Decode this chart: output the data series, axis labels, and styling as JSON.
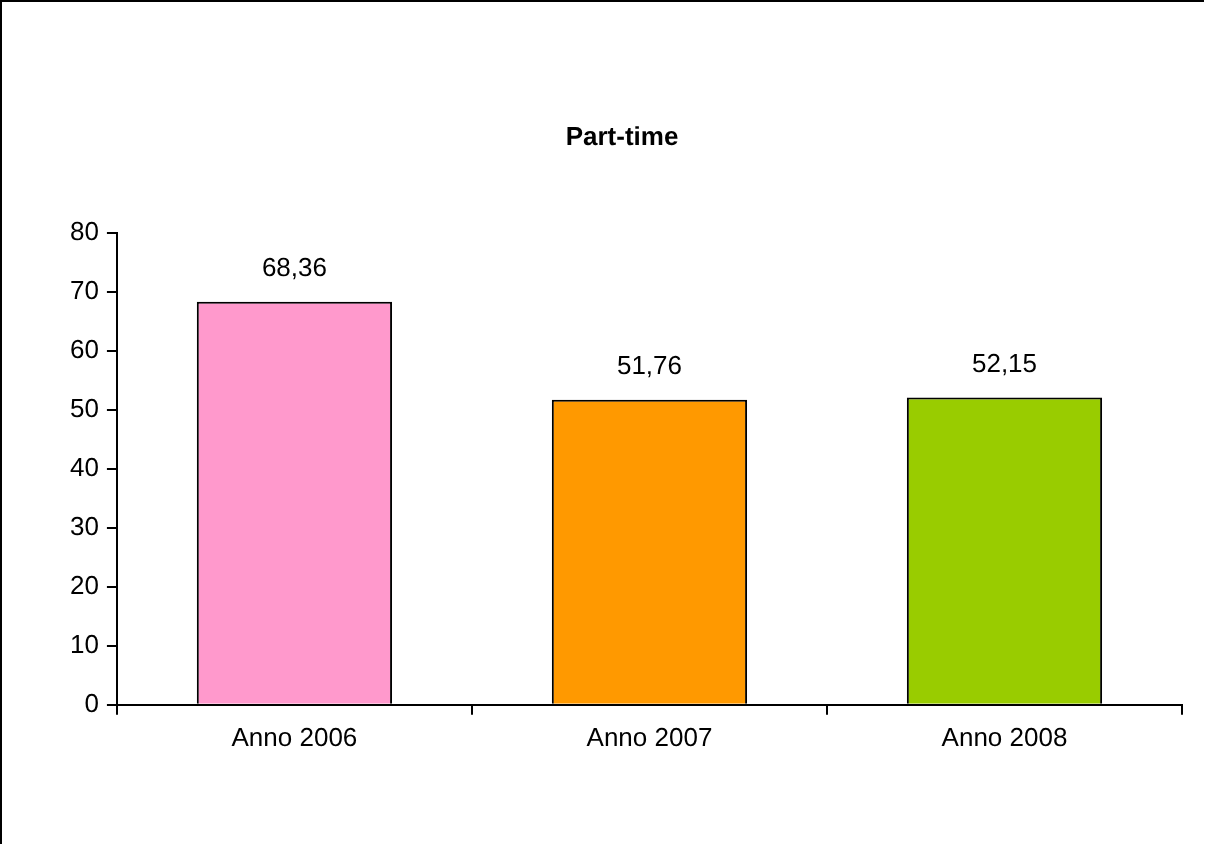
{
  "chart_data": {
    "type": "bar",
    "title": "Part-time",
    "categories": [
      "Anno 2006",
      "Anno 2007",
      "Anno 2008"
    ],
    "values": [
      68.36,
      51.76,
      52.15
    ],
    "colors": [
      "#ff99cc",
      "#ff9900",
      "#99cc00"
    ],
    "value_labels": [
      "68,36",
      "51,76",
      "52,15"
    ],
    "ylim": [
      0,
      80
    ],
    "yticks": [
      0,
      10,
      20,
      30,
      40,
      50,
      60,
      70,
      80
    ],
    "grid": false,
    "legend": false
  }
}
